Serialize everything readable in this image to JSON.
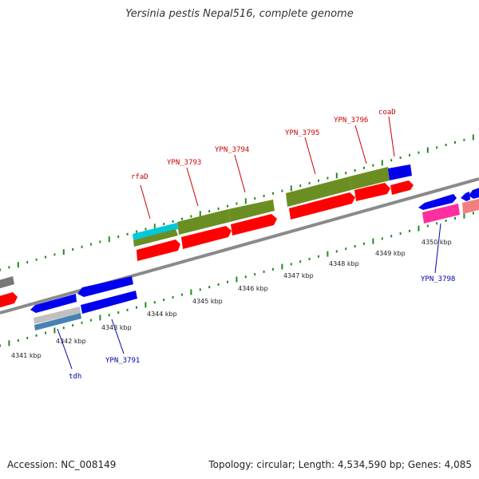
{
  "title": "Yersinia pestis Nepal516, complete genome",
  "footer": {
    "accession": "Accession: NC_008149",
    "stats": "Topology: circular; Length: 4,534,590 bp; Genes: 4,085"
  },
  "colors": {
    "backbone": "#888888",
    "tick": "#228B22",
    "red_label": "#cc0000",
    "blue_label": "#0000aa",
    "cds_red": "#ff0000",
    "cds_blue": "#0000ee",
    "cds_olive": "#6b8e23",
    "cds_cyan": "#00c8d8",
    "cds_pink": "#ff2f9f",
    "cds_gray": "#777777",
    "cds_steel": "#4682b4"
  },
  "kbp_labels": [
    "4341 kbp",
    "4342 kbp",
    "4343 kbp",
    "4344 kbp",
    "4345 kbp",
    "4346 kbp",
    "4347 kbp",
    "4348 kbp",
    "4349 kbp",
    "4350 kbp"
  ],
  "gene_labels_top": [
    "rfaD",
    "YPN_3793",
    "YPN_3794",
    "YPN_3795",
    "YPN_3796",
    "coaD"
  ],
  "gene_labels_bottom": [
    "tdh",
    "YPN_3791",
    "YPN_3798"
  ]
}
